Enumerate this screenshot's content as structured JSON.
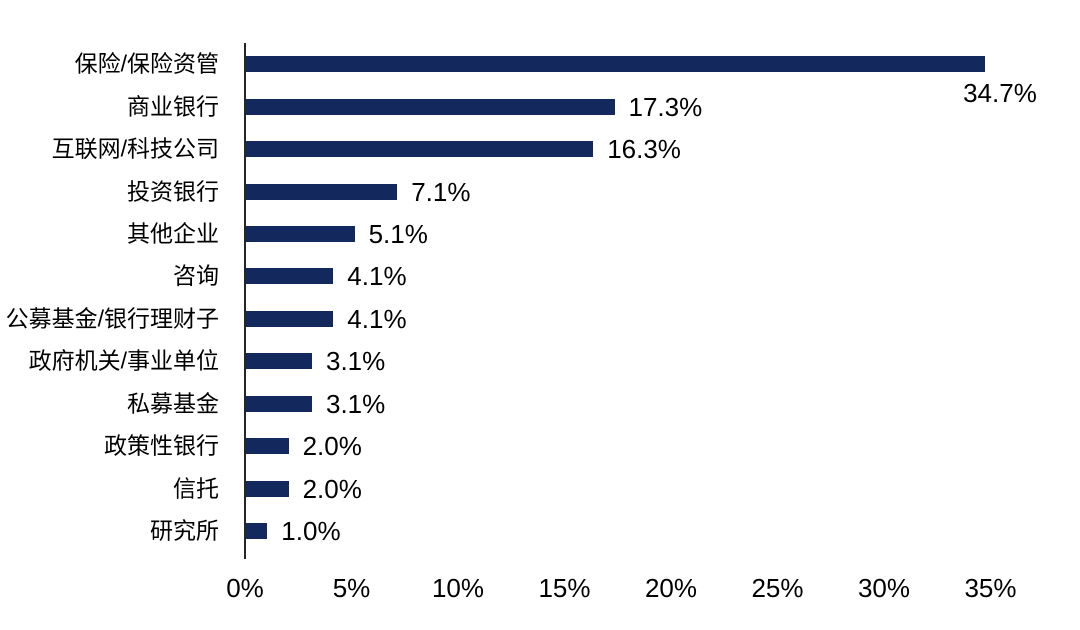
{
  "chart_data": {
    "type": "bar",
    "orientation": "horizontal",
    "title": "",
    "xlabel": "",
    "ylabel": "",
    "categories": [
      "保险/保险资管",
      "商业银行",
      "互联网/科技公司",
      "投资银行",
      "其他企业",
      "咨询",
      "公募基金/银行理财子",
      "政府机关/事业单位",
      "私募基金",
      "政策性银行",
      "信托",
      "研究所"
    ],
    "values": [
      34.7,
      17.3,
      16.3,
      7.1,
      5.1,
      4.1,
      4.1,
      3.1,
      3.1,
      2.0,
      2.0,
      1.0
    ],
    "value_labels": [
      "34.7%",
      "17.3%",
      "16.3%",
      "7.1%",
      "5.1%",
      "4.1%",
      "4.1%",
      "3.1%",
      "3.1%",
      "2.0%",
      "2.0%",
      "1.0%"
    ],
    "label_below_indices": [
      0
    ],
    "x_ticks": [
      "0%",
      "5%",
      "10%",
      "15%",
      "20%",
      "25%",
      "30%",
      "35%"
    ],
    "x_tick_values": [
      0,
      5,
      10,
      15,
      20,
      25,
      30,
      35
    ],
    "xlim": [
      0,
      35
    ],
    "grid": false,
    "legend": false,
    "bar_color": "#13295e",
    "axis_color": "#262626",
    "text_color": "#000000",
    "background_color": "#ffffff"
  }
}
